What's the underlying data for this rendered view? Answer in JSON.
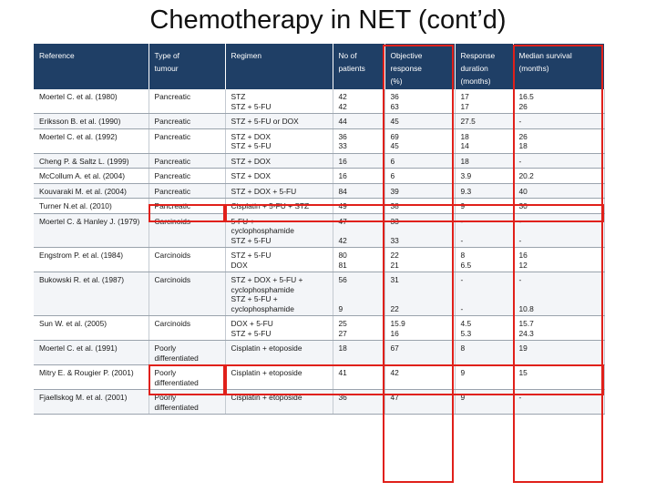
{
  "title": "Chemotherapy in NET (cont’d)",
  "table": {
    "headers": [
      "Reference",
      "Type of\ntumour",
      "Regimen",
      "No of\npatients",
      "Objective\nresponse\n(%)",
      "Response\nduration\n(months)",
      "Median survival\n(months)"
    ],
    "rows": [
      [
        "Moertel C. et al. (1980)",
        "Pancreatic",
        "STZ\nSTZ + 5-FU",
        "42\n42",
        "36\n63",
        "17\n17",
        "16.5\n26"
      ],
      [
        "Eriksson B. et al. (1990)",
        "Pancreatic",
        "STZ + 5-FU or DOX",
        "44",
        "45",
        "27.5",
        "-"
      ],
      [
        "Moertel C. et al. (1992)",
        "Pancreatic",
        "STZ + DOX\nSTZ + 5-FU",
        "36\n33",
        "69\n45",
        "18\n14",
        "26\n18"
      ],
      [
        "Cheng P. & Saltz L. (1999)",
        "Pancreatic",
        "STZ + DOX",
        "16",
        "6",
        "18",
        "-"
      ],
      [
        "McCollum A. et al. (2004)",
        "Pancreatic",
        "STZ + DOX",
        "16",
        "6",
        "3.9",
        "20.2"
      ],
      [
        "Kouvaraki M. et al. (2004)",
        "Pancreatic",
        "STZ + DOX + 5-FU",
        "84",
        "39",
        "9.3",
        "40"
      ],
      [
        "Turner N.et al. (2010)",
        "Pancreatic",
        "Cisplatin + 5-FU + STZ",
        "49",
        "38",
        "9",
        "30"
      ],
      [
        "Moertel C. & Hanley J. (1979)",
        "Carcinoids",
        "5-FU +\ncyclophosphamide\nSTZ + 5-FU",
        "47\n\n42",
        "33\n\n33",
        "-\n\n-",
        "-\n\n-"
      ],
      [
        "Engstrom P. et al. (1984)",
        "Carcinoids",
        "STZ + 5-FU\nDOX",
        "80\n81",
        "22\n21",
        "8\n6.5",
        "16\n12"
      ],
      [
        "Bukowski R. et al. (1987)",
        "Carcinoids",
        "STZ + DOX + 5-FU +\ncyclophosphamide\nSTZ + 5-FU +\ncyclophosphamide",
        "56\n\n\n9",
        "31\n\n\n22",
        "-\n\n\n-",
        "-\n\n\n10.8"
      ],
      [
        "Sun W. et al. (2005)",
        "Carcinoids",
        "DOX + 5-FU\nSTZ + 5-FU",
        "25\n27",
        "15.9\n16",
        "4.5\n5.3",
        "15.7\n24.3"
      ],
      [
        "Moertel C. et al. (1991)",
        "Poorly\ndifferentiated",
        "Cisplatin + etoposide",
        "18",
        "67",
        "8",
        "19"
      ],
      [
        "Mitry E. & Rougier P. (2001)",
        "Poorly\ndifferentiated",
        "Cisplatin + etoposide",
        "41",
        "42",
        "9",
        "15"
      ],
      [
        "Fjaellskog M. et al. (2001)",
        "Poorly\ndifferentiated",
        "Cisplatin + etoposide",
        "36",
        "47",
        "9",
        "-"
      ]
    ]
  },
  "highlight_color": "#e0201a",
  "header_color": "#1f3f66"
}
